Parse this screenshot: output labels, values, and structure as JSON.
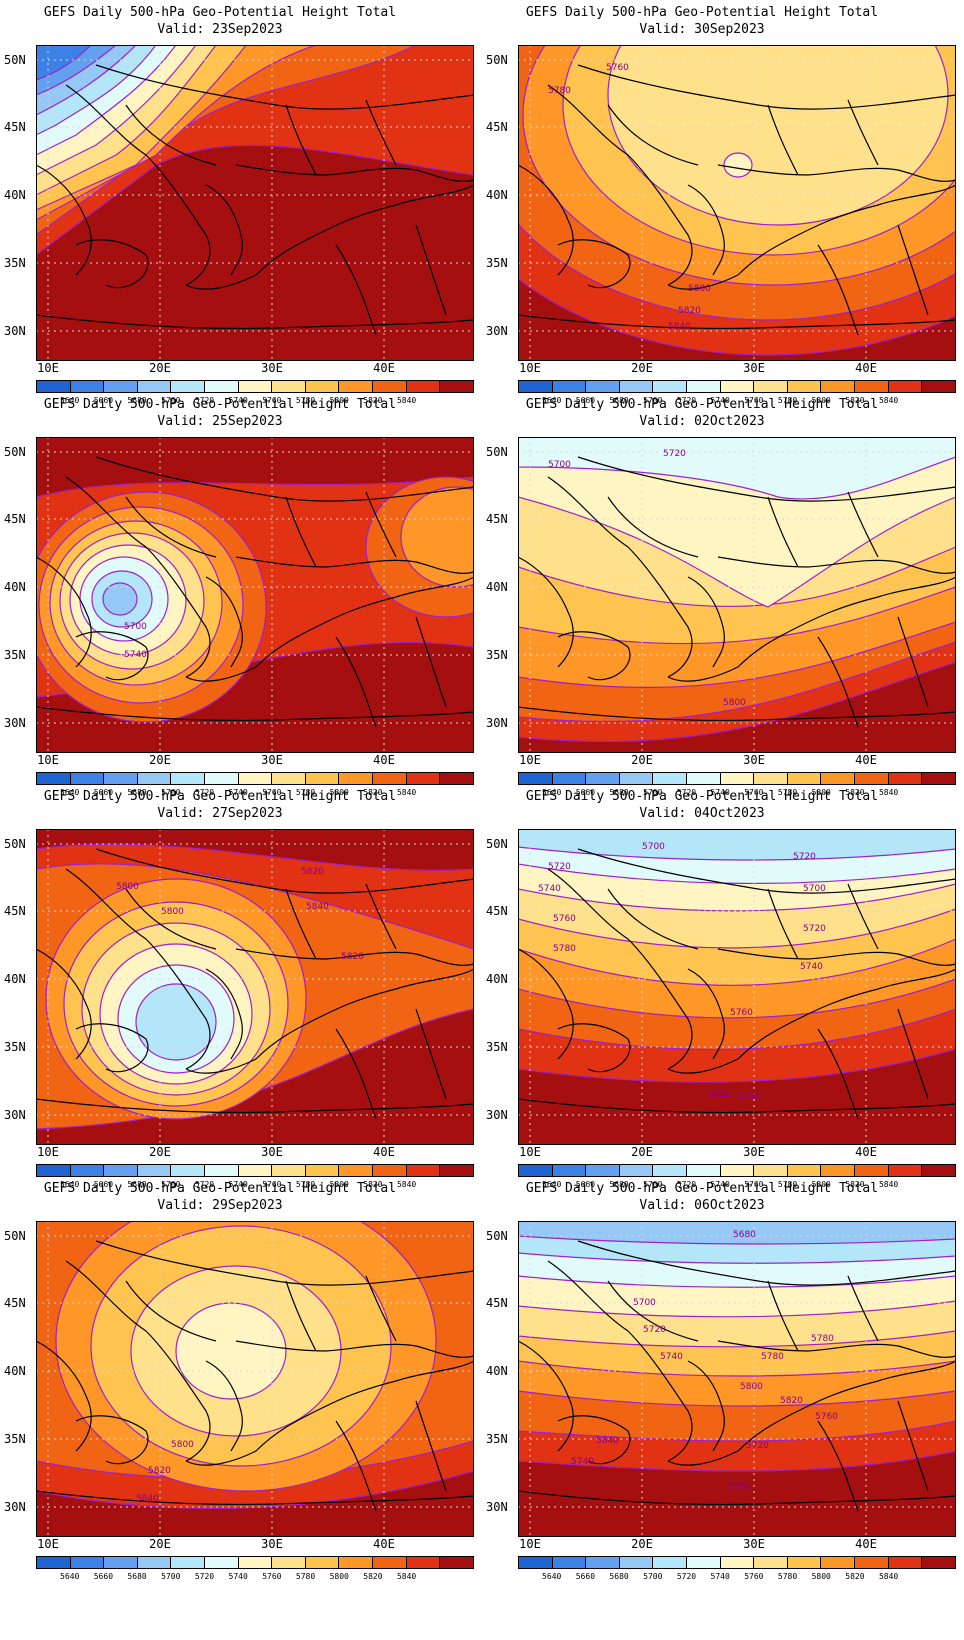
{
  "colorbar": {
    "labels": [
      "5640",
      "5660",
      "5680",
      "5700",
      "5720",
      "5740",
      "5760",
      "5780",
      "5800",
      "5820",
      "5840"
    ],
    "colors": [
      "#1e64d2",
      "#3c82e6",
      "#64a0f0",
      "#96c8f5",
      "#b4e6fa",
      "#e1fafa",
      "#fff5c3",
      "#ffe18c",
      "#ffc350",
      "#ff9628",
      "#f06414",
      "#e13214",
      "#a50f0f"
    ]
  },
  "axes": {
    "lat_labels": [
      "50N",
      "45N",
      "40N",
      "35N",
      "30N"
    ],
    "lon_labels": [
      "10E",
      "20E",
      "30E",
      "40E"
    ]
  },
  "panels": [
    {
      "title": "GEFS Daily 500-hPa Geo-Potential Height Total",
      "valid": "Valid: 23Sep2023",
      "labels": []
    },
    {
      "title": "GEFS Daily 500-hPa Geo-Potential Height Total",
      "valid": "Valid: 30Sep2023",
      "labels": [
        "5760",
        "5780",
        "5800",
        "5820",
        "5840"
      ]
    },
    {
      "title": "GEFS Daily 500-hPa Geo-Potential Height Total",
      "valid": "Valid: 25Sep2023",
      "labels": [
        "5700",
        "5740"
      ]
    },
    {
      "title": "GEFS Daily 500-hPa Geo-Potential Height Total",
      "valid": "Valid: 02Oct2023",
      "labels": [
        "5700",
        "5720",
        "5800"
      ]
    },
    {
      "title": "GEFS Daily 500-hPa Geo-Potential Height Total",
      "valid": "Valid: 27Sep2023",
      "labels": [
        "5800",
        "5820",
        "5840",
        "5820",
        "5800"
      ]
    },
    {
      "title": "GEFS Daily 500-hPa Geo-Potential Height Total",
      "valid": "Valid: 04Oct2023",
      "labels": [
        "5700",
        "5720",
        "5740",
        "5760",
        "5780",
        "5720",
        "5700",
        "5720",
        "5740",
        "5760",
        "5780",
        "5820"
      ]
    },
    {
      "title": "GEFS Daily 500-hPa Geo-Potential Height Total",
      "valid": "Valid: 29Sep2023",
      "labels": [
        "5800",
        "5820",
        "5840"
      ]
    },
    {
      "title": "GEFS Daily 500-hPa Geo-Potential Height Total",
      "valid": "Valid: 06Oct2023",
      "labels": [
        "5680",
        "5700",
        "5720",
        "5740",
        "5760",
        "5780",
        "5800",
        "5820",
        "5840",
        "5720",
        "5740",
        "5760",
        "5780"
      ]
    }
  ]
}
